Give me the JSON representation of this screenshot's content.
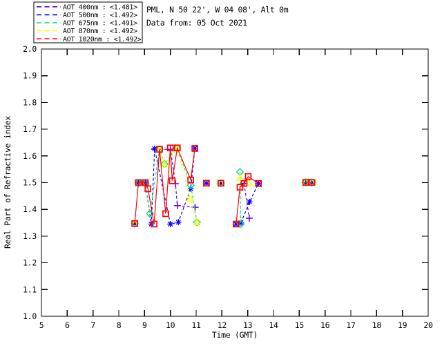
{
  "header": {
    "station": "PML, N 50 22', W 04 08', Alt 0m",
    "date_line": "Data from: 05 Oct 2021"
  },
  "legend": {
    "separator": " : "
  },
  "chart_data": {
    "type": "line",
    "title": "",
    "xlabel": "Time (GMT)",
    "ylabel": "Real Part of Refractive index",
    "xlim": [
      5,
      20
    ],
    "ylim": [
      1.0,
      2.0
    ],
    "xticks": [
      5,
      6,
      7,
      8,
      9,
      10,
      11,
      12,
      13,
      14,
      15,
      16,
      17,
      18,
      19,
      20
    ],
    "ytick_labels": [
      "1.0",
      "1.1",
      "1.2",
      "1.3",
      "1.4",
      "1.5",
      "1.6",
      "1.7",
      "1.8",
      "1.9",
      "2.0"
    ],
    "grid": false,
    "legend_position": "top-left",
    "axis_color": "#000000",
    "series": [
      {
        "name": "AOT 400nm",
        "legend_label": "AOT  400nm",
        "legend_value": "<1.481>",
        "color": "#6B00D6",
        "marker": "plus",
        "linestyle": "dashed",
        "segments": [
          [
            [
              9.39,
              1.625
            ],
            [
              10.0,
              1.625
            ],
            [
              10.2,
              1.496
            ],
            [
              10.27,
              1.414
            ],
            [
              10.96,
              1.408
            ]
          ],
          [
            [
              12.86,
              1.497
            ],
            [
              13.06,
              1.367
            ]
          ]
        ]
      },
      {
        "name": "AOT 500nm",
        "legend_label": "AOT  500nm",
        "legend_value": "<1.492>",
        "color": "#0000FF",
        "marker": "asterisk",
        "linestyle": "dashed",
        "segments": [
          [
            [
              8.62,
              1.347
            ]
          ],
          [
            [
              8.76,
              1.499
            ],
            [
              9.03,
              1.499
            ],
            [
              9.26,
              1.345
            ],
            [
              9.39,
              1.627
            ],
            [
              10.0,
              1.345
            ],
            [
              10.31,
              1.352
            ],
            [
              10.79,
              1.478
            ],
            [
              10.95,
              1.628
            ]
          ],
          [
            [
              11.4,
              1.498
            ]
          ],
          [
            [
              11.96,
              1.498
            ]
          ],
          [
            [
              12.55,
              1.345
            ],
            [
              12.74,
              1.35
            ],
            [
              13.07,
              1.428
            ],
            [
              13.42,
              1.497
            ]
          ],
          [
            [
              15.25,
              1.501
            ],
            [
              15.49,
              1.501
            ]
          ]
        ]
      },
      {
        "name": "AOT 675nm",
        "legend_label": "AOT  675nm",
        "legend_value": "<1.491>",
        "color": "#00E087",
        "marker": "diamond",
        "linestyle": "dashed",
        "segments": [
          [
            [
              8.62,
              1.347
            ]
          ],
          [
            [
              8.76,
              1.499
            ],
            [
              9.03,
              1.499
            ],
            [
              9.21,
              1.384
            ],
            [
              9.58,
              1.625
            ],
            [
              9.77,
              1.57
            ],
            [
              10.27,
              1.628
            ],
            [
              10.79,
              1.49
            ],
            [
              11.03,
              1.352
            ]
          ],
          [
            [
              11.96,
              1.498
            ]
          ],
          [
            [
              12.7,
              1.54
            ],
            [
              12.73,
              1.345
            ]
          ],
          [
            [
              15.25,
              1.501
            ],
            [
              15.49,
              1.501
            ]
          ]
        ]
      },
      {
        "name": "AOT 870nm",
        "legend_label": "AOT  870nm",
        "legend_value": "<1.492>",
        "color": "#FFFF00",
        "marker": "triangle",
        "linestyle": "dashed",
        "segments": [
          [
            [
              8.62,
              1.347
            ]
          ],
          [
            [
              9.58,
              1.625
            ],
            [
              9.77,
              1.568
            ],
            [
              10.27,
              1.628
            ],
            [
              10.76,
              1.44
            ],
            [
              11.03,
              1.352
            ]
          ],
          [
            [
              11.96,
              1.498
            ]
          ],
          [
            [
              12.7,
              1.518
            ],
            [
              13.05,
              1.5
            ]
          ],
          [
            [
              15.25,
              1.501
            ],
            [
              15.49,
              1.501
            ]
          ]
        ]
      },
      {
        "name": "AOT 1020nm",
        "legend_label": "AOT 1020nm",
        "legend_value": "<1.492>",
        "color": "#FF0000",
        "marker": "square",
        "linestyle": "solid",
        "segments": [
          [
            [
              8.62,
              1.347
            ],
            [
              8.76,
              1.5
            ],
            [
              9.03,
              1.5
            ],
            [
              9.13,
              1.477
            ],
            [
              9.37,
              1.345
            ],
            [
              9.58,
              1.625
            ],
            [
              9.82,
              1.384
            ],
            [
              10.0,
              1.63
            ],
            [
              10.07,
              1.507
            ],
            [
              10.27,
              1.63
            ],
            [
              10.79,
              1.51
            ],
            [
              10.95,
              1.628
            ]
          ],
          [
            [
              11.4,
              1.498
            ]
          ],
          [
            [
              11.96,
              1.498
            ]
          ],
          [
            [
              12.55,
              1.345
            ],
            [
              12.7,
              1.483
            ],
            [
              12.86,
              1.497
            ],
            [
              13.02,
              1.523
            ],
            [
              13.42,
              1.497
            ]
          ],
          [
            [
              15.25,
              1.501
            ],
            [
              15.49,
              1.501
            ]
          ]
        ]
      }
    ]
  }
}
